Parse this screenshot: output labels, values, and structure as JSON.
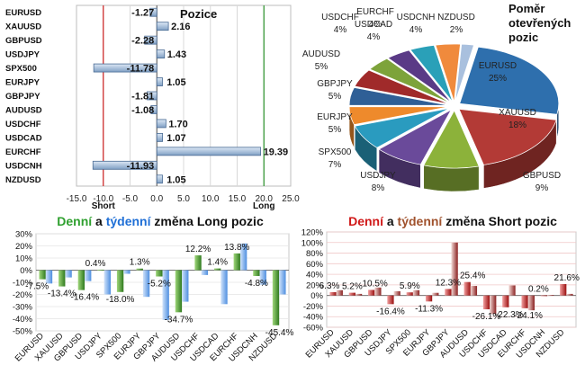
{
  "colors": {
    "bar_fill": "#b8cfe8",
    "bar_stroke": "#4a6b94",
    "short_line": "#d03030",
    "long_line": "#3a9a3a",
    "green": "#2fa02f",
    "blue": "#1f6fd6",
    "red": "#d01818",
    "brown": "#a0522d"
  },
  "chart_data": [
    {
      "type": "bar",
      "orientation": "horizontal",
      "title": "Pozice",
      "categories": [
        "EURUSD",
        "XAUUSD",
        "GBPUSD",
        "USDJPY",
        "SPX500",
        "EURJPY",
        "GBPJPY",
        "AUDUSD",
        "USDCHF",
        "USDCAD",
        "EURCHF",
        "USDCNH",
        "NZDUSD"
      ],
      "values": [
        -1.27,
        2.16,
        -2.28,
        1.43,
        -11.78,
        1.05,
        -1.81,
        -1.08,
        1.7,
        1.07,
        19.39,
        -11.93,
        1.05
      ],
      "value_labels": [
        "-1.27",
        "2.16",
        "-2.28",
        "1.43",
        "-11.78",
        "1.05",
        "-1.81",
        "-1.08",
        "1.70",
        "1.07",
        "19.39",
        "-11.93",
        "1.05"
      ],
      "xlim": [
        -15,
        25
      ],
      "ticks": [
        -15,
        -10,
        -5,
        0,
        5,
        10,
        15,
        20,
        25
      ],
      "tick_labels": [
        "-15.0",
        "-10.0",
        "-5.0",
        "0.0",
        "5.0",
        "10.0",
        "15.0",
        "20.0",
        "25.0"
      ],
      "reference_lines": [
        {
          "label": "Short",
          "value": -10
        },
        {
          "label": "Long",
          "value": 20
        }
      ]
    },
    {
      "type": "pie",
      "title_lines": [
        "Poměr",
        "otevřených",
        "pozic"
      ],
      "slices": [
        {
          "label": "EURUSD",
          "value": 25,
          "text": "25%",
          "color": "#2e6fad"
        },
        {
          "label": "XAUUSD",
          "value": 18,
          "text": "18%",
          "color": "#b33a36"
        },
        {
          "label": "GBPUSD",
          "value": 9,
          "text": "9%",
          "color": "#8cb23a"
        },
        {
          "label": "USDJPY",
          "value": 8,
          "text": "8%",
          "color": "#6a4a9a"
        },
        {
          "label": "SPX500",
          "value": 7,
          "text": "7%",
          "color": "#2a9bbf"
        },
        {
          "label": "EURJPY",
          "value": 5,
          "text": "5%",
          "color": "#ee8a2c"
        },
        {
          "label": "GBPJPY",
          "value": 5,
          "text": "5%",
          "color": "#2f5f96"
        },
        {
          "label": "AUDUSD",
          "value": 5,
          "text": "5%",
          "color": "#a02a2a"
        },
        {
          "label": "USDCHF",
          "value": 4,
          "text": "4%",
          "color": "#7da33a"
        },
        {
          "label": "EURCHF",
          "value": 4,
          "text": "4%",
          "color": "#5a3a86"
        },
        {
          "label": "USDCAD",
          "value": 4,
          "text": "4%",
          "color": "#2aa0b8"
        },
        {
          "label": "USDCNH",
          "value": 4,
          "text": "4%",
          "color": "#f08a3c"
        },
        {
          "label": "NZDUSD",
          "value": 2,
          "text": "2%",
          "color": "#a9c0de"
        }
      ]
    },
    {
      "type": "bar",
      "title_parts": [
        "Denní",
        " a ",
        "týdenní",
        " změna Long pozic"
      ],
      "categories": [
        "EURUSD",
        "XAUUSD",
        "GBPUSD",
        "USDJPY",
        "SPX500",
        "EURJPY",
        "GBPJPY",
        "AUDUSD",
        "USDCHF",
        "USDCAD",
        "EURCHF",
        "USDCNH",
        "NZDUSD"
      ],
      "series": [
        {
          "values": [
            -7.5,
            -13.4,
            -16.4,
            0.4,
            -18.0,
            1.3,
            -5.2,
            -34.7,
            12.2,
            1.4,
            13.8,
            -4.8,
            -45.4
          ]
        },
        {
          "values": [
            -11,
            -6,
            -9,
            -20,
            -3,
            -22,
            -41,
            -26,
            -4,
            -28,
            22,
            -12,
            -20
          ]
        }
      ],
      "data_labels": [
        "-7.5%",
        "-13.4%",
        "-16.4%",
        "0.4%",
        "-18.0%",
        "1.3%",
        "-5.2%",
        "-34.7%",
        "12.2%",
        "1.4%",
        "13.8%",
        "-4.8%",
        "-45.4%"
      ],
      "ylim": [
        -50,
        30
      ],
      "ticks": [
        -50,
        -40,
        -30,
        -20,
        -10,
        0,
        10,
        20,
        30
      ],
      "tick_labels": [
        "-50%",
        "-40%",
        "-30%",
        "-20%",
        "-10%",
        "0%",
        "10%",
        "20%",
        "30%"
      ]
    },
    {
      "type": "bar",
      "title_parts": [
        "Denní",
        " a ",
        "týdenní",
        " změna Short pozic"
      ],
      "categories": [
        "EURUSD",
        "XAUUSD",
        "GBPUSD",
        "USDJPY",
        "SPX500",
        "EURJPY",
        "GBPJPY",
        "AUDUSD",
        "USDCHF",
        "USDCAD",
        "EURCHF",
        "USDCNH",
        "NZDUSD"
      ],
      "series": [
        {
          "values": [
            6.3,
            5.2,
            10.5,
            -16.4,
            5.9,
            -11.3,
            12.3,
            25.4,
            -26.1,
            -22.3,
            -24.1,
            0.2,
            21.6
          ]
        },
        {
          "values": [
            10,
            3,
            15,
            8,
            10,
            5,
            100,
            18,
            -35,
            19,
            -28,
            1,
            3
          ]
        }
      ],
      "data_labels": [
        "6.3%",
        "5.2%",
        "10.5%",
        "-16.4%",
        "5.9%",
        "-11.3%",
        "12.3%",
        "25.4%",
        "-26.1%",
        "-22.3%",
        "-24.1%",
        "0.2%",
        "21.6%"
      ],
      "ylim": [
        -60,
        120
      ],
      "ticks": [
        -60,
        -40,
        -20,
        0,
        20,
        40,
        60,
        80,
        100,
        120
      ],
      "tick_labels": [
        "-60%",
        "-40%",
        "-20%",
        "0%",
        "20%",
        "40%",
        "60%",
        "80%",
        "100%",
        "120%"
      ]
    }
  ]
}
